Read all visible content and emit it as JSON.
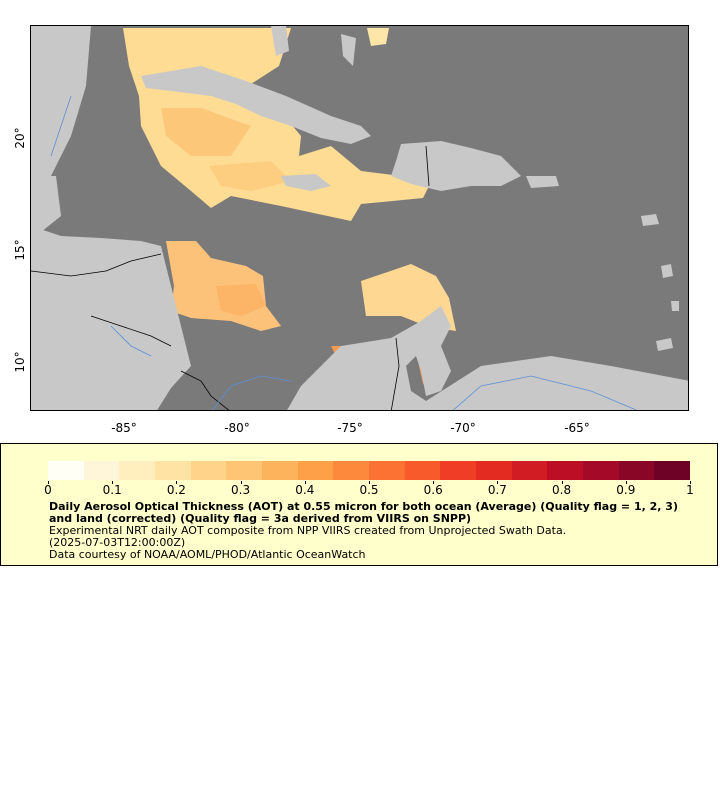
{
  "map": {
    "x_ticks": [
      "-85°",
      "-80°",
      "-75°",
      "-70°",
      "-65°"
    ],
    "y_ticks": [
      "20°",
      "15°",
      "10°"
    ],
    "colors": {
      "ocean": "#7a7a7a",
      "land": "#c8c8c8",
      "rivers": "#5b8fd6",
      "borders": "#000000"
    }
  },
  "legend": {
    "min_label": "0",
    "ticks": [
      "0",
      "0.1",
      "0.2",
      "0.3",
      "0.4",
      "0.5",
      "0.6",
      "0.7",
      "0.8",
      "0.9",
      "1"
    ],
    "colors": [
      "#fffff5",
      "#fff5d9",
      "#ffeebe",
      "#ffe3a4",
      "#ffd48a",
      "#fec574",
      "#fdb35c",
      "#fda048",
      "#fd8a3c",
      "#fc7232",
      "#f95a2c",
      "#f03e26",
      "#e42b22",
      "#d21c24",
      "#bc0f26",
      "#a40a28",
      "#8a0627",
      "#6e0226"
    ],
    "title": "Daily Aerosol Optical Thickness (AOT) at 0.55 micron for both ocean (Average) (Quality flag = 1, 2, 3) and land (corrected) (Quality flag = 3a derived from VIIRS on SNPP)",
    "subtitle": "Experimental NRT daily AOT composite from NPP VIIRS created from Unprojected Swath Data.",
    "timestamp": "(2025-07-03T12:00:00Z)",
    "credit": "Data courtesy of NOAA/AOML/PHOD/Atlantic OceanWatch"
  }
}
